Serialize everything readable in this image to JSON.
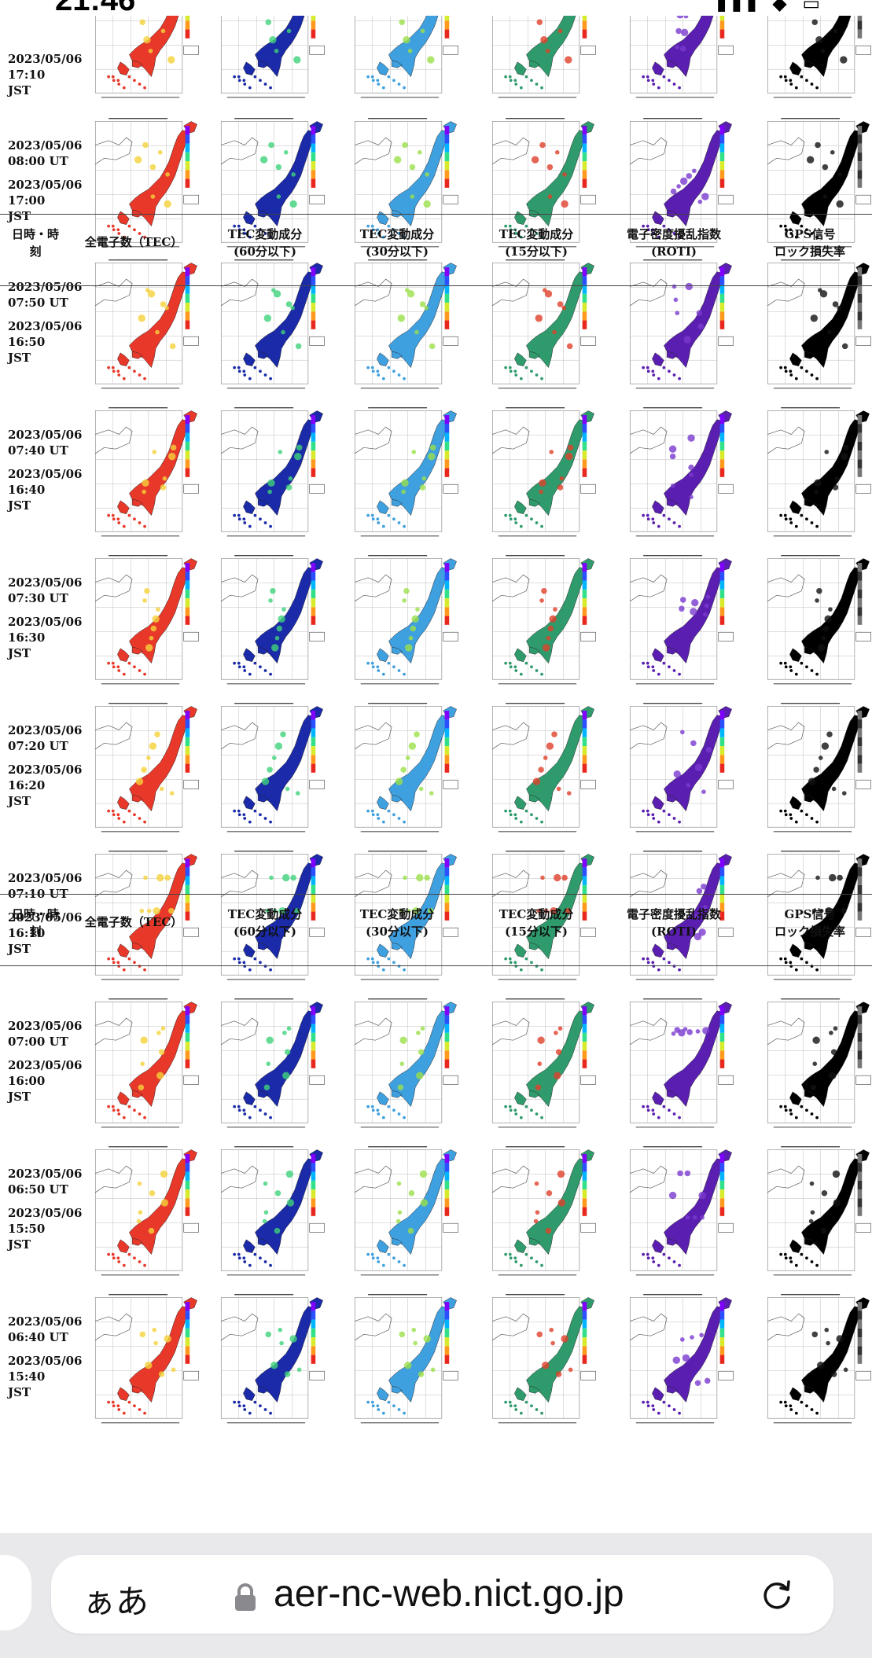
{
  "status_bar": {
    "time": "21:46",
    "icons": "▮▮▮ ◆ ▭"
  },
  "header": {
    "datetime": [
      "日時・時",
      "刻"
    ],
    "tec": [
      "全電子数（TEC）"
    ],
    "c60": [
      "TEC変動成分",
      "(60分以下)"
    ],
    "c30": [
      "TEC変動成分",
      "(30分以下)"
    ],
    "c15": [
      "TEC変動成分",
      "(15分以下)"
    ],
    "roti": [
      "電子密度擾乱指数",
      "(ROTI)"
    ],
    "gps": [
      "GPS信号",
      "ロック損失率"
    ]
  },
  "rows": [
    {
      "ut_date": "2023/05/06",
      "ut_time": "",
      "jst_date": "",
      "jst_time": "17:10",
      "jst": "JST",
      "partial": true
    },
    {
      "ut_date": "2023/05/06",
      "ut_time": "08:00 UT",
      "jst_date": "2023/05/06",
      "jst_time": "17:00",
      "jst": "JST"
    },
    {
      "ut_date": "2023/05/06",
      "ut_time": "07:50 UT",
      "jst_date": "2023/05/06",
      "jst_time": "16:50",
      "jst": "JST"
    },
    {
      "ut_date": "2023/05/06",
      "ut_time": "07:40 UT",
      "jst_date": "2023/05/06",
      "jst_time": "16:40",
      "jst": "JST"
    },
    {
      "ut_date": "2023/05/06",
      "ut_time": "07:30 UT",
      "jst_date": "2023/05/06",
      "jst_time": "16:30",
      "jst": "JST"
    },
    {
      "ut_date": "2023/05/06",
      "ut_time": "07:20 UT",
      "jst_date": "2023/05/06",
      "jst_time": "16:20",
      "jst": "JST"
    },
    {
      "ut_date": "2023/05/06",
      "ut_time": "07:10 UT",
      "jst_date": "2023/05/06",
      "jst_time": "16:10",
      "jst": "JST"
    },
    {
      "ut_date": "2023/05/06",
      "ut_time": "07:00 UT",
      "jst_date": "2023/05/06",
      "jst_time": "16:00",
      "jst": "JST"
    },
    {
      "ut_date": "2023/05/06",
      "ut_time": "06:50 UT",
      "jst_date": "2023/05/06",
      "jst_time": "15:50",
      "jst": "JST"
    },
    {
      "ut_date": "2023/05/06",
      "ut_time": "06:40 UT",
      "jst_date": "2023/05/06",
      "jst_time": "15:40",
      "jst": "JST"
    }
  ],
  "map_columns": [
    {
      "key": "tec",
      "name": "tec-map",
      "fill": "#e8382a",
      "accent": "#f5d23a"
    },
    {
      "key": "c60",
      "name": "tec-60min-map",
      "fill": "#1a2aa8",
      "accent": "#3fd27a"
    },
    {
      "key": "c30",
      "name": "tec-30min-map",
      "fill": "#3fa0e0",
      "accent": "#9be04a"
    },
    {
      "key": "c15",
      "name": "tec-15min-map",
      "fill": "#2f9b6c",
      "accent": "#e0402a"
    },
    {
      "key": "roti",
      "name": "roti-map",
      "fill": "#5a1fb0",
      "accent": "#7a3ad0"
    },
    {
      "key": "gps",
      "name": "gps-lock-loss-map",
      "fill": "#000000",
      "accent": "#111111"
    }
  ],
  "browser": {
    "aa": "ぁあ",
    "url": "aer-nc-web.nict.go.jp"
  }
}
